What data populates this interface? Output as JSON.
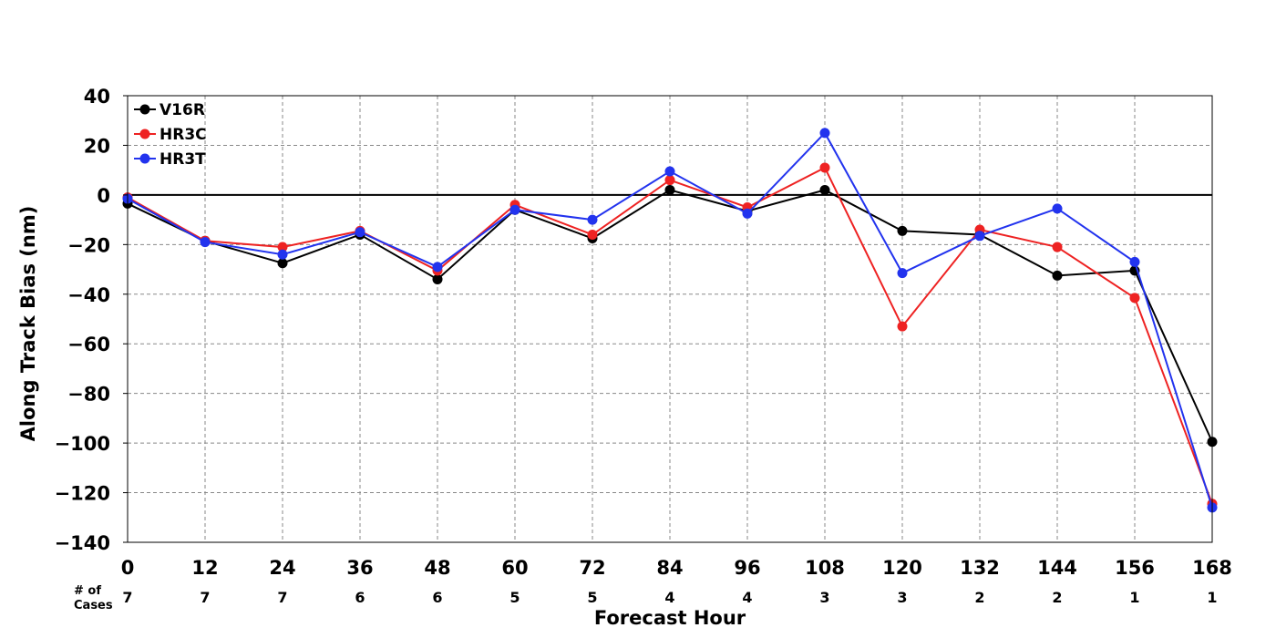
{
  "chart_data": {
    "type": "line",
    "title": "",
    "xlabel": "Forecast Hour",
    "ylabel": "Along Track Bias (nm)",
    "x": [
      0,
      12,
      24,
      36,
      48,
      60,
      72,
      84,
      96,
      108,
      120,
      132,
      144,
      156,
      168
    ],
    "xlim": [
      0,
      168
    ],
    "ylim": [
      -140,
      40
    ],
    "yticks": [
      40,
      20,
      0,
      -20,
      -40,
      -60,
      -80,
      -100,
      -120,
      -140
    ],
    "ytick_labels": [
      "40",
      "20",
      "0",
      "−20",
      "−40",
      "−60",
      "−80",
      "−100",
      "−120",
      "−140"
    ],
    "grid": true,
    "legend_position": "top-left",
    "cases_label_line1": "# of",
    "cases_label_line2": "Cases",
    "cases": [
      7,
      7,
      7,
      6,
      6,
      5,
      5,
      4,
      4,
      3,
      3,
      2,
      2,
      1,
      1
    ],
    "series": [
      {
        "name": "V16R",
        "color": "#000000",
        "values": [
          -3.5,
          -18.5,
          -27.5,
          -16,
          -34,
          -6,
          -17.5,
          2,
          -6.5,
          2,
          -14.5,
          -16,
          -32.5,
          -30.5,
          -99.5
        ]
      },
      {
        "name": "HR3C",
        "color": "#ee2222",
        "values": [
          -1,
          -18.5,
          -21,
          -14.5,
          -30.5,
          -4,
          -16,
          6,
          -5,
          11,
          -53,
          -14,
          -21,
          -41.5,
          -124.5
        ]
      },
      {
        "name": "HR3T",
        "color": "#2233ee",
        "values": [
          -1.5,
          -19,
          -24,
          -15,
          -29,
          -6,
          -10,
          9.5,
          -7.5,
          25,
          -31.5,
          -16.5,
          -5.5,
          -27,
          -126
        ]
      }
    ]
  }
}
